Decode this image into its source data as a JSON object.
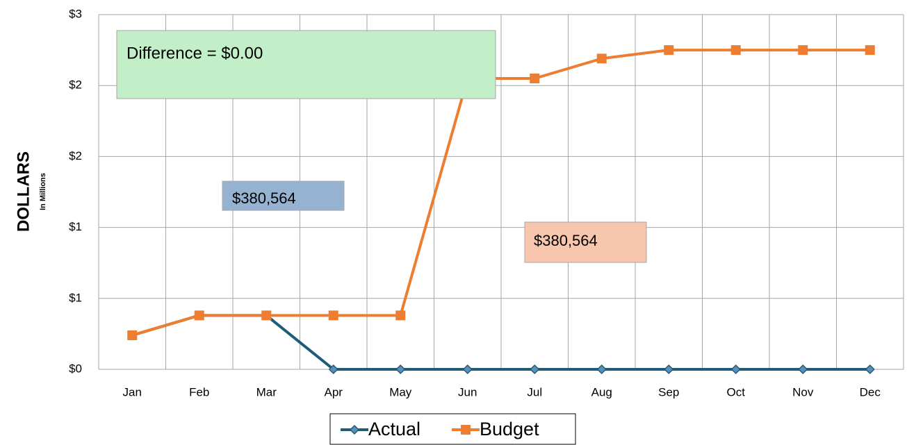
{
  "chart_data": {
    "type": "line",
    "y_axis_label": "DOLLARS",
    "y_axis_sublabel": "In Millions",
    "categories": [
      "Jan",
      "Feb",
      "Mar",
      "Apr",
      "May",
      "Jun",
      "Jul",
      "Aug",
      "Sep",
      "Oct",
      "Nov",
      "Dec"
    ],
    "series": [
      {
        "name": "Actual",
        "color": "#1f5c7a",
        "marker": "diamond",
        "values": [
          0.24,
          0.38,
          0.38,
          0,
          0,
          0,
          0,
          0,
          0,
          0,
          0,
          0
        ]
      },
      {
        "name": "Budget",
        "color": "#ed7d31",
        "marker": "square",
        "values": [
          0.24,
          0.38,
          0.38,
          0.38,
          0.38,
          2.05,
          2.05,
          2.19,
          2.25,
          2.25,
          2.25,
          2.25
        ]
      }
    ],
    "ylim": [
      0,
      2.5
    ],
    "yticks": [
      {
        "value": 0,
        "label": "$0"
      },
      {
        "value": 0.5,
        "label": "$1"
      },
      {
        "value": 1,
        "label": "$1"
      },
      {
        "value": 1.5,
        "label": "$2"
      },
      {
        "value": 2,
        "label": "$2"
      },
      {
        "value": 2.5,
        "label": "$3"
      }
    ],
    "grid": true,
    "legend": "bottom",
    "annotations": [
      {
        "text": "Difference = $0.00",
        "color": "#c3efc8"
      },
      {
        "text": "$380,564",
        "color": "#95b3d1"
      },
      {
        "text": "$380,564",
        "color": "#f7c6ad"
      }
    ]
  }
}
